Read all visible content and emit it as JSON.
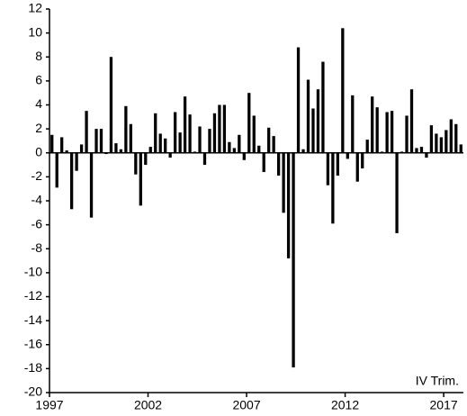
{
  "chart_data": {
    "type": "bar",
    "annotation": "IV Trim.",
    "categories": [
      "1997",
      null,
      null,
      null,
      null,
      null,
      null,
      null,
      null,
      null,
      null,
      null,
      null,
      null,
      null,
      null,
      null,
      null,
      null,
      null,
      "2002",
      null,
      null,
      null,
      null,
      null,
      null,
      null,
      null,
      null,
      null,
      null,
      null,
      null,
      null,
      null,
      null,
      null,
      null,
      null,
      "2007",
      null,
      null,
      null,
      null,
      null,
      null,
      null,
      null,
      null,
      null,
      null,
      null,
      null,
      null,
      null,
      null,
      null,
      null,
      null,
      "2012",
      null,
      null,
      null,
      null,
      null,
      null,
      null,
      null,
      null,
      null,
      null,
      null,
      null,
      null,
      null,
      null,
      null,
      null,
      null,
      "2017",
      null,
      null,
      null
    ],
    "values": [
      1.5,
      -2.9,
      1.3,
      0.2,
      -4.7,
      -1.5,
      0.7,
      3.5,
      -5.4,
      2.0,
      2.0,
      -0.1,
      8.0,
      0.8,
      0.3,
      3.9,
      2.4,
      -1.8,
      -4.4,
      -1.0,
      0.5,
      3.3,
      1.6,
      1.2,
      -0.4,
      3.4,
      1.7,
      4.7,
      3.2,
      0.1,
      2.2,
      -1.0,
      2.0,
      3.3,
      4.0,
      4.0,
      0.9,
      0.4,
      1.5,
      -0.6,
      5.0,
      3.1,
      0.6,
      -1.6,
      2.1,
      1.4,
      -1.9,
      -5.0,
      -8.8,
      -17.9,
      8.8,
      0.3,
      6.1,
      3.7,
      5.3,
      7.6,
      -2.7,
      -5.9,
      -1.9,
      10.4,
      -0.5,
      4.8,
      -2.4,
      -1.3,
      1.1,
      4.7,
      3.8,
      0.1,
      3.4,
      3.5,
      -6.7,
      0.1,
      3.1,
      5.3,
      0.4,
      0.5,
      -0.4,
      2.3,
      1.6,
      1.3,
      1.9,
      2.8,
      2.4,
      0.7
    ],
    "color": "#000000",
    "ylim": [
      -20,
      12
    ],
    "yticks": [
      -20,
      -18,
      -16,
      -14,
      -12,
      -10,
      -8,
      -6,
      -4,
      -2,
      0,
      2,
      4,
      6,
      8,
      10,
      12
    ],
    "grid": false
  }
}
